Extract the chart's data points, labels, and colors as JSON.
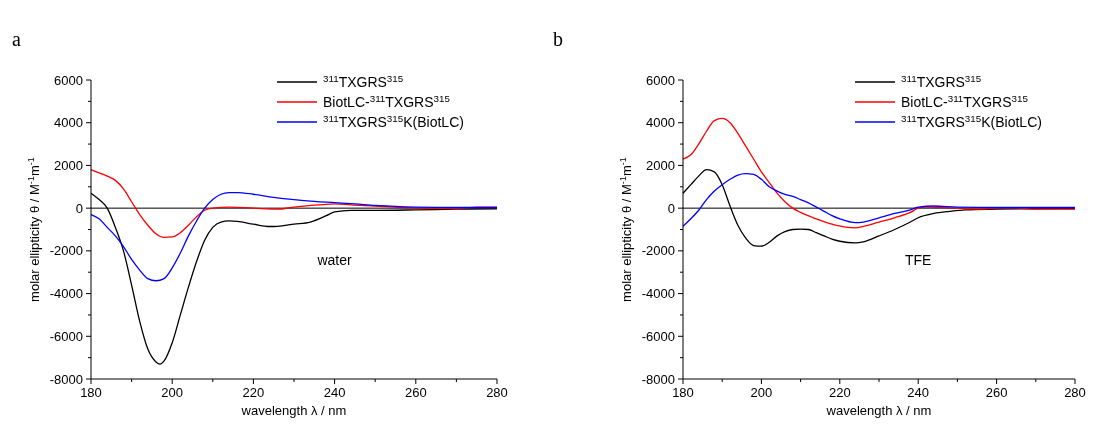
{
  "chart_data": [
    {
      "type": "line",
      "title": "a",
      "xlabel": "wavelength λ / nm",
      "ylabel": "molar ellipticity θ / M$^{-1}$m$^{-1}$",
      "annotations": [
        "water"
      ],
      "xlim": [
        180,
        280
      ],
      "ylim": [
        -8000,
        6000
      ],
      "xticks": [
        180,
        {
          "value": 190,
          "label": null
        },
        200,
        {
          "value": 210,
          "label": null
        },
        220,
        {
          "value": 230,
          "label": null
        },
        240,
        {
          "value": 250,
          "label": null
        },
        260,
        {
          "value": 270,
          "label": null
        },
        280
      ],
      "yticks": [
        -8000,
        {
          "value": -7000,
          "label": null
        },
        -6000,
        {
          "value": -5000,
          "label": null
        },
        -4000,
        {
          "value": -3000,
          "label": null
        },
        -2000,
        {
          "value": -1000,
          "label": null
        },
        0,
        {
          "value": 1000,
          "label": null
        },
        2000,
        {
          "value": 3000,
          "label": null
        },
        4000,
        {
          "value": 5000,
          "label": null
        },
        6000
      ],
      "grid": false,
      "legend": "top right",
      "line_style": "solid",
      "marker": "none",
      "ref_lines": [
        {
          "axis": "y",
          "value": 0,
          "color": "#000000"
        }
      ],
      "series": [
        {
          "name": "$^{311}$TXGRS$^{315}$",
          "color": "#000000",
          "x": [
            180,
            182,
            184,
            186,
            188,
            190,
            192,
            194,
            196,
            197,
            198,
            200,
            202,
            204,
            206,
            208,
            210,
            212,
            214,
            216,
            220,
            224,
            226,
            230,
            234,
            238,
            240,
            244,
            250,
            260,
            270,
            280
          ],
          "values": [
            700,
            400,
            0,
            -900,
            -2000,
            -3600,
            -5300,
            -6600,
            -7200,
            -7300,
            -7150,
            -6300,
            -5000,
            -3700,
            -2500,
            -1500,
            -900,
            -650,
            -600,
            -620,
            -750,
            -860,
            -850,
            -750,
            -650,
            -350,
            -180,
            -100,
            -100,
            -80,
            -50,
            -30
          ]
        },
        {
          "name": "BiotLC-$^{311}$TXGRS$^{315}$",
          "color": "#ff0000",
          "x": [
            180,
            182,
            184,
            186,
            188,
            190,
            192,
            194,
            196,
            198,
            200,
            202,
            204,
            206,
            208,
            210,
            214,
            220,
            226,
            230,
            236,
            240,
            244,
            250,
            260,
            270,
            275,
            280
          ],
          "values": [
            1800,
            1650,
            1500,
            1300,
            900,
            300,
            -300,
            -800,
            -1200,
            -1370,
            -1350,
            -1150,
            -800,
            -400,
            -100,
            0,
            50,
            0,
            -50,
            50,
            150,
            200,
            150,
            100,
            0,
            -20,
            50,
            50
          ]
        },
        {
          "name": "$^{311}$TXGRS$^{315}$K(BiotLC)",
          "color": "#0000ff",
          "x": [
            180,
            182,
            184,
            186,
            188,
            190,
            192,
            194,
            196,
            198,
            200,
            202,
            204,
            206,
            208,
            210,
            212,
            214,
            216,
            220,
            225,
            230,
            235,
            240,
            245,
            250,
            255,
            260,
            270,
            280
          ],
          "values": [
            -300,
            -500,
            -900,
            -1300,
            -1800,
            -2400,
            -2900,
            -3300,
            -3400,
            -3300,
            -2800,
            -2100,
            -1300,
            -600,
            0,
            400,
            650,
            730,
            730,
            650,
            500,
            400,
            320,
            260,
            200,
            130,
            80,
            50,
            30,
            30
          ]
        }
      ]
    },
    {
      "type": "line",
      "title": "b",
      "xlabel": "wavelength λ / nm",
      "ylabel": "molar ellipticity θ / M$^{-1}$m$^{-1}$",
      "annotations": [
        "TFE"
      ],
      "xlim": [
        180,
        280
      ],
      "ylim": [
        -8000,
        6000
      ],
      "xticks": [
        180,
        {
          "value": 190,
          "label": null
        },
        200,
        {
          "value": 210,
          "label": null
        },
        220,
        {
          "value": 230,
          "label": null
        },
        240,
        {
          "value": 250,
          "label": null
        },
        260,
        {
          "value": 270,
          "label": null
        },
        280
      ],
      "yticks": [
        -8000,
        {
          "value": -7000,
          "label": null
        },
        -6000,
        {
          "value": -5000,
          "label": null
        },
        -4000,
        {
          "value": -3000,
          "label": null
        },
        -2000,
        {
          "value": -1000,
          "label": null
        },
        0,
        {
          "value": 1000,
          "label": null
        },
        2000,
        {
          "value": 3000,
          "label": null
        },
        4000,
        {
          "value": 5000,
          "label": null
        },
        6000
      ],
      "grid": false,
      "legend": "top right",
      "line_style": "solid",
      "marker": "none",
      "ref_lines": [
        {
          "axis": "y",
          "value": 0,
          "color": "#000000"
        }
      ],
      "series": [
        {
          "name": "$^{311}$TXGRS$^{315}$",
          "color": "#000000",
          "x": [
            180,
            182,
            184,
            186,
            188,
            190,
            192,
            194,
            196,
            198,
            200,
            202,
            204,
            206,
            208,
            210,
            212,
            214,
            216,
            218,
            220,
            224,
            226,
            230,
            234,
            238,
            240,
            244,
            248,
            252,
            260,
            270,
            280
          ],
          "values": [
            700,
            1100,
            1500,
            1800,
            1700,
            1100,
            100,
            -800,
            -1400,
            -1750,
            -1780,
            -1600,
            -1300,
            -1100,
            -1000,
            -980,
            -1000,
            -1150,
            -1300,
            -1450,
            -1550,
            -1630,
            -1580,
            -1300,
            -1000,
            -650,
            -450,
            -250,
            -150,
            -80,
            -50,
            -30,
            -20
          ]
        },
        {
          "name": "BiotLC-$^{311}$TXGRS$^{315}$",
          "color": "#ff0000",
          "x": [
            180,
            182,
            184,
            186,
            188,
            190,
            192,
            194,
            196,
            198,
            200,
            202,
            204,
            206,
            208,
            210,
            214,
            218,
            222,
            224,
            226,
            230,
            234,
            238,
            240,
            242,
            250,
            256,
            260,
            265,
            270,
            280
          ],
          "values": [
            2300,
            2500,
            3000,
            3600,
            4100,
            4200,
            4000,
            3500,
            2900,
            2300,
            1700,
            1200,
            700,
            300,
            0,
            -200,
            -500,
            -750,
            -900,
            -920,
            -850,
            -650,
            -450,
            -200,
            0,
            50,
            0,
            -50,
            0,
            0,
            -50,
            -50
          ]
        },
        {
          "name": "$^{311}$TXGRS$^{315}$K(BiotLC)",
          "color": "#0000ff",
          "x": [
            180,
            182,
            184,
            186,
            188,
            190,
            192,
            194,
            196,
            198,
            200,
            202,
            204,
            206,
            208,
            210,
            212,
            214,
            216,
            218,
            220,
            224,
            226,
            230,
            234,
            238,
            240,
            244,
            250,
            260,
            270,
            280
          ],
          "values": [
            -850,
            -500,
            -100,
            400,
            800,
            1100,
            1350,
            1550,
            1620,
            1580,
            1350,
            1000,
            800,
            650,
            550,
            400,
            250,
            50,
            -150,
            -350,
            -500,
            -680,
            -650,
            -450,
            -250,
            -80,
            50,
            100,
            50,
            30,
            30,
            30
          ]
        }
      ]
    }
  ]
}
